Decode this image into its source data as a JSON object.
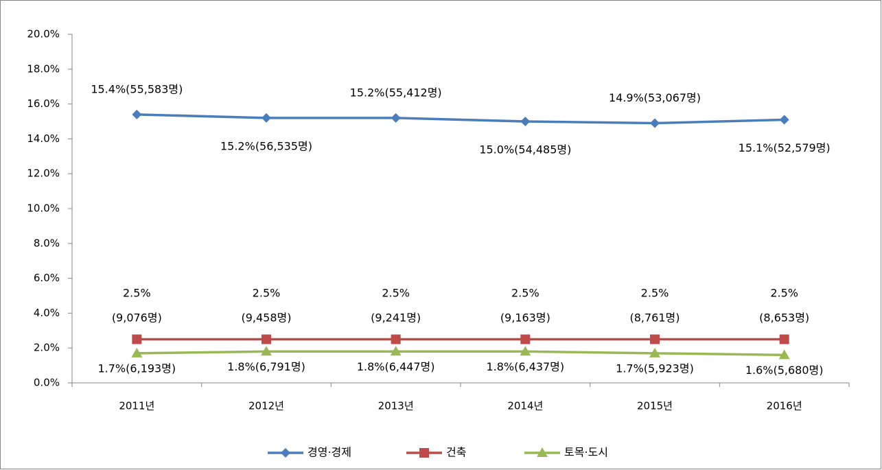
{
  "chart_data": {
    "type": "line",
    "categories": [
      "2011년",
      "2012년",
      "2013년",
      "2014년",
      "2015년",
      "2016년"
    ],
    "series": [
      {
        "name": "경영·경제",
        "color": "#4a7ebb",
        "marker": "diamond",
        "values": [
          15.4,
          15.2,
          15.2,
          15.0,
          14.9,
          15.1
        ],
        "value_labels": [
          "15.4%(55,583명)",
          "15.2%(56,535명)",
          "15.2%(55,412명)",
          "15.0%(54,485명)",
          "14.9%(53,067명)",
          "15.1%(52,579명)"
        ]
      },
      {
        "name": "건축",
        "color": "#be4b48",
        "marker": "square",
        "values": [
          2.5,
          2.5,
          2.5,
          2.5,
          2.5,
          2.5
        ],
        "value_labels": [
          "2.5%\n(9,076명)",
          "2.5%\n(9,458명)",
          "2.5%\n(9,241명)",
          "2.5%\n(9,163명)",
          "2.5%\n(8,761명)",
          "2.5%\n(8,653명)"
        ]
      },
      {
        "name": "토목·도시",
        "color": "#98b954",
        "marker": "triangle",
        "values": [
          1.7,
          1.8,
          1.8,
          1.8,
          1.7,
          1.6
        ],
        "value_labels": [
          "1.7%(6,193명)",
          "1.8%(6,791명)",
          "1.8%(6,447명)",
          "1.8%(6,437명)",
          "1.7%(5,923명)",
          "1.6%(5,680명)"
        ]
      }
    ],
    "ylim": [
      0,
      20
    ],
    "yticks": [
      {
        "value": 0,
        "label": "0.0%"
      },
      {
        "value": 2,
        "label": "2.0%"
      },
      {
        "value": 4,
        "label": "4.0%"
      },
      {
        "value": 6,
        "label": "6.0%"
      },
      {
        "value": 8,
        "label": "8.0%"
      },
      {
        "value": 10,
        "label": "10.0%"
      },
      {
        "value": 12,
        "label": "12.0%"
      },
      {
        "value": 14,
        "label": "14.0%"
      },
      {
        "value": 16,
        "label": "16.0%"
      },
      {
        "value": 18,
        "label": "18.0%"
      },
      {
        "value": 20,
        "label": "20.0%"
      }
    ],
    "grid": false,
    "legend": "bottom"
  }
}
